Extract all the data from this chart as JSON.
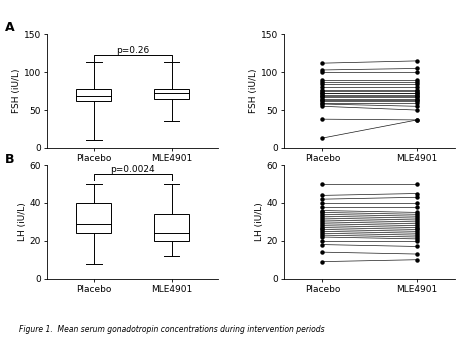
{
  "panel_A_label": "A",
  "panel_B_label": "B",
  "fsh_box_placebo": {
    "median": 68,
    "q1": 62,
    "q3": 78,
    "whisker_low": 10,
    "whisker_high": 113
  },
  "fsh_box_mle4901": {
    "median": 72,
    "q1": 65,
    "q3": 78,
    "whisker_low": 35,
    "whisker_high": 113
  },
  "lh_box_placebo": {
    "median": 29,
    "q1": 24,
    "q3": 40,
    "whisker_low": 8,
    "whisker_high": 50
  },
  "lh_box_mle4901": {
    "median": 24,
    "q1": 20,
    "q3": 34,
    "whisker_low": 12,
    "whisker_high": 50
  },
  "fsh_paired_placebo": [
    13,
    38,
    55,
    58,
    60,
    62,
    63,
    65,
    67,
    68,
    70,
    72,
    73,
    75,
    77,
    80,
    85,
    87,
    90,
    100,
    103,
    112
  ],
  "fsh_paired_mle4901": [
    37,
    37,
    50,
    55,
    60,
    62,
    63,
    65,
    67,
    68,
    70,
    72,
    73,
    75,
    77,
    80,
    85,
    87,
    90,
    100,
    105,
    115
  ],
  "lh_paired_placebo": [
    9,
    14,
    18,
    20,
    22,
    23,
    24,
    25,
    26,
    27,
    28,
    29,
    30,
    31,
    32,
    33,
    34,
    35,
    36,
    38,
    40,
    42,
    44,
    50
  ],
  "lh_paired_mle4901": [
    10,
    13,
    17,
    20,
    21,
    22,
    23,
    24,
    25,
    26,
    27,
    28,
    29,
    30,
    31,
    32,
    33,
    34,
    35,
    38,
    40,
    43,
    45,
    50
  ],
  "fsh_ylim": [
    0,
    150
  ],
  "fsh_yticks": [
    0,
    50,
    100,
    150
  ],
  "lh_ylim": [
    0,
    60
  ],
  "lh_yticks": [
    0,
    20,
    40,
    60
  ],
  "fsh_ylabel": "FSH (iU/L)",
  "lh_ylabel": "LH (iU/L)",
  "x_labels": [
    "Placebo",
    "MLE4901"
  ],
  "fsh_pvalue": "p=0.26",
  "lh_pvalue": "p=0.0024",
  "caption": "Figure 1.  Mean serum gonadotropin concentrations during intervention periods",
  "box_color": "white",
  "box_edge_color": "black",
  "line_color": "black",
  "marker_color": "black",
  "bg_color": "white",
  "fontsize_label": 6.5,
  "fontsize_tick": 6.5,
  "fontsize_panel": 9,
  "fontsize_pvalue": 6.5,
  "fontsize_caption": 5.5
}
